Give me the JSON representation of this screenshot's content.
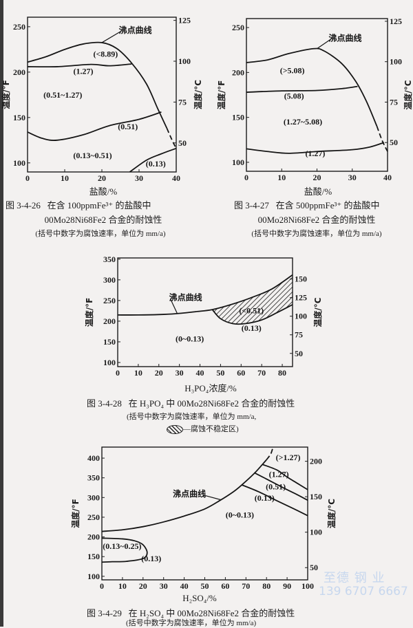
{
  "chart_data": [
    {
      "type": "line",
      "figure_label": "图 3-4-26",
      "title": "在含 100ppmFe³⁺ 的盐酸中",
      "title_line2": "00Mo28Ni68Fe2 合金的耐蚀性",
      "note": "(括号中数字为腐蚀速率，单位为 mm/a)",
      "xlabel": "盐酸/%",
      "ylabel": "温度/°F",
      "ylabel_right": "温度/°C",
      "xlim": [
        0,
        40
      ],
      "ylim": [
        90,
        260.5
      ],
      "xticks": [
        0,
        10,
        20,
        30,
        40
      ],
      "yticks": [
        100,
        150,
        200,
        250
      ],
      "yticks_right": [
        50,
        75,
        100,
        125
      ],
      "grid": false,
      "curves": [
        {
          "name": "沸点曲线",
          "points": [
            [
              0,
              211
            ],
            [
              5,
              217
            ],
            [
              10,
              225
            ],
            [
              15,
              231
            ],
            [
              20,
              232.5
            ],
            [
              24,
              226
            ],
            [
              28,
              210
            ],
            [
              32,
              187
            ],
            [
              35,
              160
            ],
            [
              37.5,
              138
            ]
          ],
          "dashed_tail": [
            [
              37.5,
              138
            ],
            [
              39,
              124
            ],
            [
              40,
              116
            ]
          ]
        },
        {
          "name": "(1.27)",
          "points": [
            [
              0,
              206
            ],
            [
              8,
              206
            ],
            [
              17,
              208.5
            ],
            [
              22,
              207
            ],
            [
              28,
              209
            ]
          ]
        },
        {
          "name": "(0.51)",
          "points": [
            [
              0,
              134
            ],
            [
              4,
              127
            ],
            [
              8,
              125
            ],
            [
              15,
              131
            ],
            [
              22,
              141
            ],
            [
              30,
              148
            ],
            [
              36,
              156
            ]
          ]
        },
        {
          "name": "(0.13)",
          "points": [
            [
              27.5,
              90
            ],
            [
              32,
              103
            ],
            [
              36,
              110
            ],
            [
              40,
              116
            ]
          ]
        }
      ],
      "labels": [
        {
          "text": "沸点曲线",
          "x": 29,
          "y": 246,
          "leader_to": [
            20,
            232.5
          ]
        },
        {
          "text": "(<8.89)",
          "x": 21,
          "y": 220
        },
        {
          "text": "(1.27)",
          "x": 15,
          "y": 201
        },
        {
          "text": "(0.51~1.27)",
          "x": 9.5,
          "y": 175
        },
        {
          "text": "(0.51)",
          "x": 27,
          "y": 140
        },
        {
          "text": "(0.13~0.51)",
          "x": 17.5,
          "y": 108
        },
        {
          "text": "(0.13)",
          "x": 34.5,
          "y": 99
        }
      ]
    },
    {
      "type": "line",
      "figure_label": "图 3-4-27",
      "title": "在含 500ppmFe³⁺ 的盐酸中",
      "title_line2": "00Mo28Ni68Fe2 合金的耐蚀性",
      "note": "(括号中数字为腐蚀速率，单位为 mm/a)",
      "xlabel": "盐酸/%",
      "ylabel": "温度/°F",
      "ylabel_right": "温度/°C",
      "xlim": [
        0,
        40
      ],
      "ylim": [
        90,
        260
      ],
      "xticks": [
        0,
        10,
        20,
        30,
        40
      ],
      "yticks": [
        100,
        150,
        200,
        250
      ],
      "yticks_right": [
        50,
        75,
        100,
        125
      ],
      "grid": false,
      "curves": [
        {
          "name": "沸点曲线",
          "points": [
            [
              0,
              211
            ],
            [
              6,
              214
            ],
            [
              12,
              221
            ],
            [
              19,
              226.5
            ],
            [
              22,
              224
            ],
            [
              27,
              210
            ],
            [
              31,
              190
            ],
            [
              34,
              168
            ],
            [
              37,
              140
            ]
          ],
          "dashed_tail": [
            [
              37,
              140
            ],
            [
              38.5,
              124
            ],
            [
              40,
              112
            ]
          ]
        },
        {
          "name": "(5.08)",
          "points": [
            [
              0,
              178
            ],
            [
              10,
              179.5
            ],
            [
              20,
              180
            ],
            [
              27,
              182
            ],
            [
              31.5,
              184.5
            ]
          ]
        },
        {
          "name": "(1.27)",
          "points": [
            [
              0,
              115
            ],
            [
              6,
              112
            ],
            [
              12,
              110
            ],
            [
              20,
              112
            ],
            [
              30,
              114
            ],
            [
              35,
              117
            ],
            [
              39,
              122
            ]
          ]
        }
      ],
      "labels": [
        {
          "text": "沸点曲线",
          "x": 28,
          "y": 238,
          "leader_to": [
            20,
            226.5
          ]
        },
        {
          "text": "(>5.08)",
          "x": 13,
          "y": 202
        },
        {
          "text": "(5.08)",
          "x": 13.5,
          "y": 174
        },
        {
          "text": "(1.27~5.08)",
          "x": 16,
          "y": 145
        },
        {
          "text": "(1.27)",
          "x": 19.5,
          "y": 110
        }
      ]
    },
    {
      "type": "line",
      "figure_label": "图 3-4-28",
      "title": "在 H₃PO₄ 中 00Mo28Ni68Fe2 合金的耐蚀性",
      "note": "(括号中数字为腐蚀速率，单位为 mm/a,",
      "legend_text": "—腐蚀不稳定区)",
      "xlabel": "H₃PO₄浓度/%",
      "ylabel": "温度/°F",
      "ylabel_right": "温度/°C",
      "xlim": [
        0,
        85
      ],
      "ylim": [
        90,
        353
      ],
      "xticks": [
        0,
        10,
        20,
        30,
        40,
        50,
        60,
        70,
        80
      ],
      "yticks": [
        100,
        150,
        200,
        250,
        300,
        350
      ],
      "yticks_right": [
        50,
        75,
        100,
        125,
        150
      ],
      "grid": false,
      "curves": [
        {
          "name": "沸点曲线",
          "points": [
            [
              0,
              215
            ],
            [
              10,
              215
            ],
            [
              20,
              216
            ],
            [
              28,
              218
            ],
            [
              38,
              223
            ],
            [
              46,
              228
            ],
            [
              55,
              240
            ],
            [
              65,
              257
            ],
            [
              75,
              278
            ],
            [
              85,
              312
            ]
          ]
        },
        {
          "name": "(0.13)",
          "points": [
            [
              46,
              228
            ],
            [
              50,
              206
            ],
            [
              56,
              194
            ],
            [
              62,
              194
            ],
            [
              70,
              203
            ],
            [
              78,
              222
            ],
            [
              85,
              240
            ]
          ]
        }
      ],
      "unstable_region": {
        "upper": [
          [
            46,
            228
          ],
          [
            55,
            240
          ],
          [
            65,
            257
          ],
          [
            75,
            278
          ],
          [
            85,
            312
          ]
        ],
        "lower": [
          [
            46,
            228
          ],
          [
            50,
            206
          ],
          [
            56,
            194
          ],
          [
            62,
            194
          ],
          [
            70,
            203
          ],
          [
            78,
            222
          ],
          [
            85,
            240
          ]
        ]
      },
      "labels": [
        {
          "text": "沸点曲线",
          "x": 33,
          "y": 257,
          "leader_to": [
            29,
            218
          ]
        },
        {
          "text": "(<0.51)",
          "x": 65,
          "y": 226
        },
        {
          "text": "(0.13)",
          "x": 65,
          "y": 183
        },
        {
          "text": "(0~0.13)",
          "x": 35,
          "y": 157
        }
      ]
    },
    {
      "type": "line",
      "figure_label": "图 3-4-29",
      "title": "在 H₂SO₄ 中 00Mo28Ni68Fe2 合金的耐蚀性",
      "note": "(括号中数字为腐蚀速率，单位为 mm/a)",
      "xlabel": "H₂SO₄/%",
      "ylabel": "温度/°F",
      "ylabel_right": "温度/°C",
      "xlim": [
        0,
        100
      ],
      "ylim": [
        91,
        428
      ],
      "xticks": [
        0,
        10,
        20,
        30,
        40,
        50,
        60,
        70,
        80,
        90,
        100
      ],
      "yticks": [
        100,
        150,
        200,
        250,
        300,
        350,
        400
      ],
      "yticks_right": [
        50,
        100,
        150,
        200
      ],
      "grid": false,
      "curves": [
        {
          "name": "沸点曲线",
          "points": [
            [
              0,
              214
            ],
            [
              10,
              218
            ],
            [
              20,
              226
            ],
            [
              30,
              238
            ],
            [
              40,
              253
            ],
            [
              50,
              271
            ],
            [
              57.5,
              293
            ],
            [
              64,
              315
            ],
            [
              68,
              332
            ],
            [
              74,
              361
            ],
            [
              78,
              384
            ],
            [
              80,
              396
            ]
          ],
          "dashed_tail": [
            [
              80,
              396
            ],
            [
              82,
              410
            ],
            [
              83,
              425
            ]
          ]
        },
        {
          "name": "(1.27)",
          "points": [
            [
              78,
              384
            ],
            [
              85,
              370
            ],
            [
              90,
              352
            ],
            [
              95,
              336
            ],
            [
              100,
              320
            ]
          ]
        },
        {
          "name": "(0.51)",
          "points": [
            [
              74,
              363
            ],
            [
              80,
              347
            ],
            [
              88,
              325
            ],
            [
              95,
              307
            ],
            [
              100,
              293
            ]
          ]
        },
        {
          "name": "(0.13)",
          "points": [
            [
              68,
              332
            ],
            [
              76,
              315
            ],
            [
              85,
              292
            ],
            [
              93,
              272
            ],
            [
              100,
              254
            ]
          ]
        },
        {
          "name": "(0.13)",
          "points": [
            [
              0,
              197
            ],
            [
              10,
              195
            ],
            [
              16,
              190
            ],
            [
              20,
              180
            ],
            [
              22,
              160
            ],
            [
              20,
              145
            ],
            [
              12,
              138
            ],
            [
              5,
              137
            ],
            [
              0,
              136
            ]
          ]
        }
      ],
      "labels": [
        {
          "text": "(>1.27)",
          "x": 90.5,
          "y": 402
        },
        {
          "text": "(1.27)",
          "x": 86,
          "y": 359
        },
        {
          "text": "(0.51)",
          "x": 84.5,
          "y": 328
        },
        {
          "text": "(0.13)",
          "x": 79,
          "y": 304
        },
        {
          "text": "沸点曲线",
          "x": 42.5,
          "y": 309,
          "leader_to": [
            58,
            294
          ]
        },
        {
          "text": "(0~0.13)",
          "x": 67,
          "y": 256
        },
        {
          "text": "(0.13~0.25)",
          "x": 10.5,
          "y": 171
        },
        {
          "text": "(0.13)",
          "x": 22,
          "y": 154
        }
      ]
    }
  ],
  "watermark": {
    "line1": "至德  钢  业",
    "line2": "139 6707 6667",
    "color": "#c7d7ee"
  }
}
